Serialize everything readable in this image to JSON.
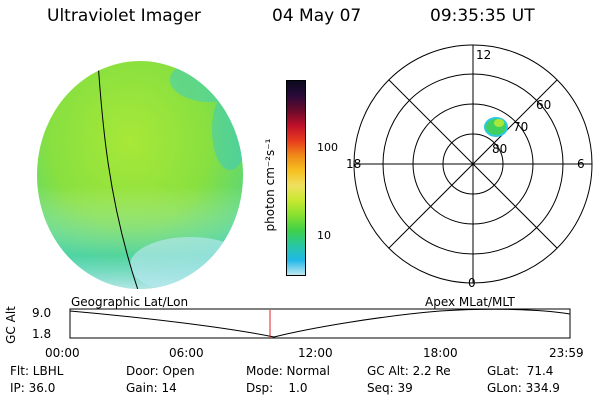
{
  "header": {
    "instrument": "Ultraviolet Imager",
    "date": "04 May 07",
    "time": "09:35:35 UT"
  },
  "colorbar": {
    "unit_label": "photon cm⁻²s⁻¹",
    "ticks": [
      "100",
      "10"
    ],
    "colors": [
      "#0a0a1e",
      "#2a0a3a",
      "#6a0a2a",
      "#c0102a",
      "#e83c1e",
      "#f08a18",
      "#f6c020",
      "#f0e060",
      "#c8e830",
      "#88e030",
      "#40d048",
      "#28c8a0",
      "#20b8e8",
      "#c0e8f0"
    ]
  },
  "polar_plot": {
    "hour_labels": {
      "top": "12",
      "left": "18",
      "right": "6",
      "bottom": "0"
    },
    "lat_labels": [
      "60",
      "70",
      "80"
    ]
  },
  "timeline": {
    "y_axis_label": "GC Alt",
    "y_ticks": [
      "9.0",
      "1.8"
    ],
    "left_label": "Geographic Lat/Lon",
    "right_label": "Apex MLat/MLT",
    "x_ticks": [
      "00:00",
      "06:00",
      "12:00",
      "18:00",
      "23:59"
    ],
    "marker_time": "09:35:35",
    "marker_color": "#e02020"
  },
  "status": {
    "flt": "Flt: LBHL",
    "ip": "IP: 36.0",
    "door": "Door: Open",
    "gain": "Gain: 14",
    "mode": "Mode: Normal",
    "dsp": "Dsp:    1.0",
    "gc_alt": "GC Alt: 2.2 Re",
    "seq": "Seq: 39",
    "glat": "GLat:  71.4",
    "glon": "GLon: 334.9"
  }
}
